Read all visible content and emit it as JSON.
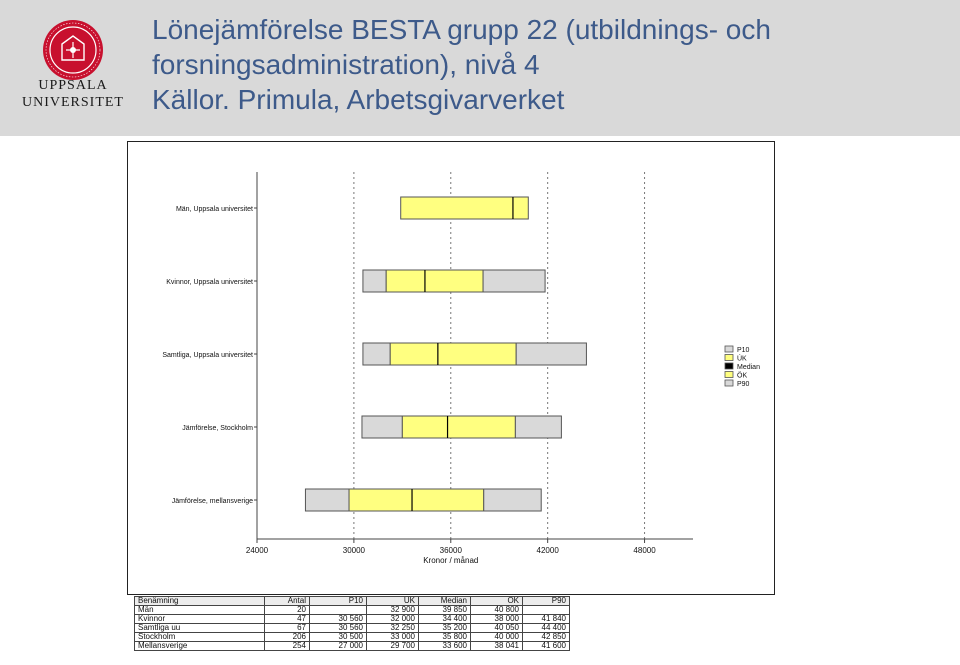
{
  "header": {
    "title_line1": "Lönejämförelse BESTA grupp 22 (utbildnings- och",
    "title_line2": "forsningsadministration), nivå 4",
    "title_line3": "Källor. Primula, Arbetsgivarverket",
    "logo_line1": "UPPSALA",
    "logo_line2": "UNIVERSITET",
    "logo_color": "#c8102e"
  },
  "chart_data": {
    "type": "bar",
    "orientation": "horizontal",
    "stacked_boxes": true,
    "categories": [
      "Män, Uppsala universitet",
      "Kvinnor, Uppsala universitet",
      "Samtliga, Uppsala universitet",
      "Jämförelse, Stockholm",
      "Jämförelse, mellansverige"
    ],
    "series": [
      {
        "name": "P10",
        "values": [
          null,
          30560,
          30560,
          30500,
          27000
        ]
      },
      {
        "name": "ÚK",
        "values": [
          32900,
          32000,
          32250,
          33000,
          29700
        ]
      },
      {
        "name": "Median",
        "values": [
          39850,
          34400,
          35200,
          35800,
          33600
        ]
      },
      {
        "name": "ÖK",
        "values": [
          40800,
          38000,
          40050,
          40000,
          38041
        ]
      },
      {
        "name": "P90",
        "values": [
          null,
          41840,
          44400,
          42850,
          41600
        ]
      }
    ],
    "xlabel": "Kronor / månad",
    "ylabel": "",
    "xlim": [
      24000,
      51000
    ],
    "xticks": [
      24000,
      30000,
      36000,
      42000,
      48000
    ],
    "grid": "vertical dotted",
    "legend_position": "right",
    "legend": [
      "P10",
      "ÚK",
      "Median",
      "ÖK",
      "P90"
    ],
    "colors": {
      "outer": "#d9d9d9",
      "inner": "#ffff80",
      "median": "#000000",
      "border": "#555555"
    }
  },
  "table": {
    "headers": [
      "Benämning",
      "Antal",
      "P10",
      "UK",
      "Median",
      "OK",
      "P90"
    ],
    "rows": [
      [
        "Män",
        "20",
        "",
        "32 900",
        "39 850",
        "40 800",
        ""
      ],
      [
        "Kvinnor",
        "47",
        "30 560",
        "32 000",
        "34 400",
        "38 000",
        "41 840"
      ],
      [
        "Samtliga uu",
        "67",
        "30 560",
        "32 250",
        "35 200",
        "40 050",
        "44 400"
      ],
      [
        "Stockholm",
        "206",
        "30 500",
        "33 000",
        "35 800",
        "40 000",
        "42 850"
      ],
      [
        "Mellansverige",
        "254",
        "27 000",
        "29 700",
        "33 600",
        "38 041",
        "41 600"
      ]
    ]
  }
}
